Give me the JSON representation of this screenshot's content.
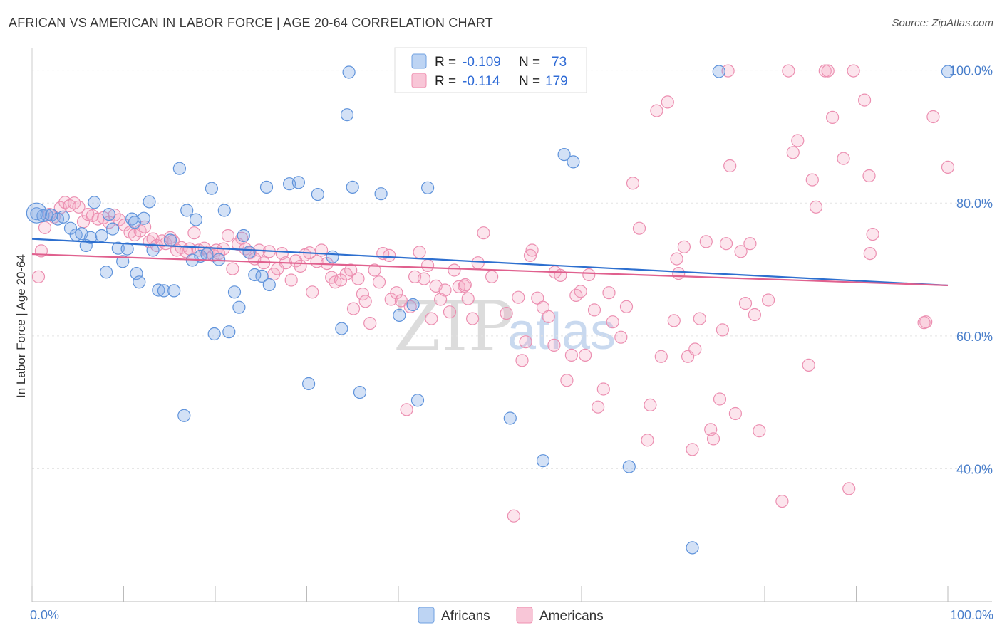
{
  "header": {
    "title": "AFRICAN VS AMERICAN IN LABOR FORCE | AGE 20-64 CORRELATION CHART",
    "source": "Source: ZipAtlas.com"
  },
  "watermark": {
    "zip": "ZIP",
    "atlas": "atlas"
  },
  "colors": {
    "africans": "#6fa0e0",
    "americans": "#ef90b0",
    "africans_line": "#2d6fcf",
    "americans_line": "#e0608e",
    "tick": "#4a7fcb"
  },
  "legend": {
    "r_label": "R =",
    "n_label": "N =",
    "africans": {
      "r": "-0.109",
      "n": "73"
    },
    "americans": {
      "r": "-0.114",
      "n": "179"
    }
  },
  "bottom_legend": {
    "africans": "Africans",
    "americans": "Americans"
  },
  "chart_data": {
    "type": "scatter",
    "title": "AFRICAN VS AMERICAN IN LABOR FORCE | AGE 20-64 CORRELATION CHART",
    "xlabel": "",
    "ylabel": "In Labor Force | Age 20-64",
    "x_tick_labels": {
      "min": "0.0%",
      "max": "100.0%"
    },
    "y_tick_labels": [
      "100.0%",
      "80.0%",
      "60.0%",
      "40.0%"
    ],
    "xlim": [
      0,
      100
    ],
    "ylim": [
      20,
      102
    ],
    "grid": true,
    "legend_position": "top-center",
    "series": [
      {
        "name": "Africans",
        "r": -0.109,
        "n": 73,
        "trend": [
          [
            0,
            74.6
          ],
          [
            100,
            67.6
          ]
        ],
        "points": [
          [
            0.5,
            78.4
          ],
          [
            1.2,
            78.1
          ],
          [
            1.6,
            78.2
          ],
          [
            2.1,
            78.2
          ],
          [
            2.8,
            77.6
          ],
          [
            3.4,
            77.9
          ],
          [
            4.2,
            76.2
          ],
          [
            4.8,
            75.2
          ],
          [
            5.4,
            75.4
          ],
          [
            5.9,
            73.6
          ],
          [
            6.4,
            74.8
          ],
          [
            6.8,
            80.1
          ],
          [
            7.6,
            75.1
          ],
          [
            8.1,
            69.6
          ],
          [
            8.4,
            78.3
          ],
          [
            8.8,
            76.1
          ],
          [
            9.4,
            73.2
          ],
          [
            9.9,
            71.2
          ],
          [
            10.4,
            73.1
          ],
          [
            10.9,
            77.6
          ],
          [
            11.4,
            69.4
          ],
          [
            11.7,
            68.1
          ],
          [
            12.2,
            77.7
          ],
          [
            12.8,
            80.2
          ],
          [
            13.2,
            72.9
          ],
          [
            13.8,
            66.9
          ],
          [
            14.4,
            66.8
          ],
          [
            15.1,
            74.4
          ],
          [
            15.5,
            66.8
          ],
          [
            16.1,
            85.2
          ],
          [
            16.6,
            48.0
          ],
          [
            16.9,
            78.9
          ],
          [
            17.5,
            71.4
          ],
          [
            17.9,
            77.5
          ],
          [
            18.4,
            72.0
          ],
          [
            19.1,
            72.3
          ],
          [
            19.6,
            82.2
          ],
          [
            19.9,
            60.3
          ],
          [
            20.4,
            71.5
          ],
          [
            21.0,
            78.9
          ],
          [
            21.5,
            60.6
          ],
          [
            22.1,
            66.6
          ],
          [
            22.6,
            64.3
          ],
          [
            23.1,
            75.1
          ],
          [
            23.7,
            72.6
          ],
          [
            24.3,
            69.2
          ],
          [
            25.1,
            69.0
          ],
          [
            25.6,
            82.4
          ],
          [
            25.9,
            67.7
          ],
          [
            28.1,
            82.9
          ],
          [
            29.1,
            83.1
          ],
          [
            30.2,
            52.8
          ],
          [
            31.2,
            81.3
          ],
          [
            32.8,
            71.9
          ],
          [
            33.8,
            61.1
          ],
          [
            34.6,
            99.7
          ],
          [
            34.4,
            93.3
          ],
          [
            35.0,
            82.4
          ],
          [
            35.8,
            51.5
          ],
          [
            38.1,
            81.4
          ],
          [
            40.1,
            63.1
          ],
          [
            41.6,
            64.7
          ],
          [
            42.1,
            50.3
          ],
          [
            43.2,
            82.3
          ],
          [
            52.2,
            47.6
          ],
          [
            55.8,
            41.2
          ],
          [
            58.1,
            87.3
          ],
          [
            59.1,
            86.2
          ],
          [
            65.2,
            40.3
          ],
          [
            72.1,
            28.1
          ],
          [
            75.0,
            99.8
          ],
          [
            100.0,
            99.8
          ],
          [
            11.2,
            77.1
          ]
        ]
      },
      {
        "name": "Americans",
        "r": -0.114,
        "n": 179,
        "trend": [
          [
            0,
            72.3
          ],
          [
            100,
            67.6
          ]
        ],
        "points": [
          [
            0.7,
            68.9
          ],
          [
            1.0,
            72.8
          ],
          [
            1.4,
            76.3
          ],
          [
            1.9,
            78.3
          ],
          [
            2.4,
            77.9
          ],
          [
            3.1,
            79.3
          ],
          [
            3.6,
            80.1
          ],
          [
            4.1,
            79.6
          ],
          [
            4.6,
            80.0
          ],
          [
            5.1,
            79.4
          ],
          [
            5.6,
            77.2
          ],
          [
            6.1,
            78.3
          ],
          [
            6.6,
            78.1
          ],
          [
            7.2,
            77.6
          ],
          [
            7.8,
            77.8
          ],
          [
            8.4,
            77.1
          ],
          [
            9.0,
            78.2
          ],
          [
            9.5,
            77.5
          ],
          [
            10.1,
            76.7
          ],
          [
            10.7,
            75.6
          ],
          [
            11.2,
            75.2
          ],
          [
            11.8,
            75.8
          ],
          [
            12.3,
            76.4
          ],
          [
            12.8,
            74.2
          ],
          [
            13.2,
            74.6
          ],
          [
            13.6,
            73.6
          ],
          [
            14.2,
            74.3
          ],
          [
            14.6,
            73.9
          ],
          [
            15.1,
            74.8
          ],
          [
            15.4,
            74.3
          ],
          [
            15.8,
            72.9
          ],
          [
            16.3,
            73.3
          ],
          [
            16.8,
            72.7
          ],
          [
            17.2,
            73.1
          ],
          [
            17.7,
            75.5
          ],
          [
            18.2,
            72.9
          ],
          [
            18.8,
            73.2
          ],
          [
            19.3,
            72.6
          ],
          [
            19.8,
            72.1
          ],
          [
            20.4,
            72.4
          ],
          [
            20.9,
            73.1
          ],
          [
            21.4,
            75.1
          ],
          [
            21.9,
            70.1
          ],
          [
            22.5,
            73.8
          ],
          [
            22.9,
            74.7
          ],
          [
            23.3,
            73.1
          ],
          [
            23.8,
            72.5
          ],
          [
            24.3,
            71.6
          ],
          [
            24.8,
            72.9
          ],
          [
            25.3,
            71.0
          ],
          [
            25.9,
            72.7
          ],
          [
            26.4,
            69.3
          ],
          [
            26.8,
            70.1
          ],
          [
            27.3,
            72.4
          ],
          [
            27.7,
            71.0
          ],
          [
            28.3,
            68.4
          ],
          [
            28.8,
            71.3
          ],
          [
            29.3,
            70.5
          ],
          [
            29.8,
            72.2
          ],
          [
            30.3,
            72.5
          ],
          [
            30.6,
            66.6
          ],
          [
            31.1,
            71.2
          ],
          [
            31.6,
            72.9
          ],
          [
            32.2,
            70.9
          ],
          [
            32.7,
            68.8
          ],
          [
            33.1,
            68.1
          ],
          [
            33.7,
            68.4
          ],
          [
            34.3,
            69.3
          ],
          [
            34.8,
            69.9
          ],
          [
            35.1,
            64.1
          ],
          [
            35.6,
            68.6
          ],
          [
            36.1,
            66.3
          ],
          [
            36.4,
            65.2
          ],
          [
            36.9,
            61.9
          ],
          [
            37.4,
            69.9
          ],
          [
            37.9,
            68.1
          ],
          [
            38.3,
            72.4
          ],
          [
            39.2,
            65.5
          ],
          [
            39.8,
            66.5
          ],
          [
            40.3,
            65.3
          ],
          [
            40.9,
            48.9
          ],
          [
            41.3,
            64.4
          ],
          [
            41.8,
            68.9
          ],
          [
            42.3,
            72.6
          ],
          [
            42.8,
            68.6
          ],
          [
            43.2,
            70.6
          ],
          [
            43.6,
            62.6
          ],
          [
            44.1,
            67.5
          ],
          [
            44.6,
            65.5
          ],
          [
            45.1,
            66.9
          ],
          [
            45.6,
            63.6
          ],
          [
            46.1,
            69.9
          ],
          [
            46.6,
            67.4
          ],
          [
            47.2,
            67.5
          ],
          [
            47.6,
            65.6
          ],
          [
            48.1,
            62.6
          ],
          [
            48.7,
            71.0
          ],
          [
            49.3,
            75.5
          ],
          [
            50.2,
            68.9
          ],
          [
            51.8,
            63.4
          ],
          [
            52.6,
            32.9
          ],
          [
            53.1,
            65.8
          ],
          [
            53.5,
            56.3
          ],
          [
            53.9,
            59.1
          ],
          [
            54.4,
            72.1
          ],
          [
            54.6,
            72.9
          ],
          [
            55.2,
            65.7
          ],
          [
            55.8,
            64.3
          ],
          [
            56.4,
            62.9
          ],
          [
            57.1,
            69.6
          ],
          [
            57.7,
            69.1
          ],
          [
            58.4,
            53.3
          ],
          [
            58.9,
            57.1
          ],
          [
            59.4,
            66.1
          ],
          [
            59.9,
            66.7
          ],
          [
            60.4,
            57.1
          ],
          [
            60.8,
            69.2
          ],
          [
            61.4,
            63.9
          ],
          [
            61.8,
            49.3
          ],
          [
            62.4,
            52.0
          ],
          [
            63.0,
            66.5
          ],
          [
            63.4,
            62.1
          ],
          [
            64.3,
            59.8
          ],
          [
            64.9,
            64.4
          ],
          [
            65.6,
            83.0
          ],
          [
            66.3,
            76.2
          ],
          [
            67.2,
            44.3
          ],
          [
            67.5,
            49.6
          ],
          [
            68.2,
            93.9
          ],
          [
            68.7,
            56.9
          ],
          [
            69.4,
            95.2
          ],
          [
            70.1,
            62.3
          ],
          [
            70.4,
            71.6
          ],
          [
            70.6,
            69.4
          ],
          [
            71.2,
            73.4
          ],
          [
            71.6,
            56.9
          ],
          [
            72.1,
            42.9
          ],
          [
            72.4,
            58.0
          ],
          [
            72.9,
            62.6
          ],
          [
            73.6,
            74.2
          ],
          [
            74.1,
            45.9
          ],
          [
            74.4,
            44.5
          ],
          [
            75.1,
            50.5
          ],
          [
            75.4,
            60.9
          ],
          [
            75.8,
            73.9
          ],
          [
            76.2,
            85.6
          ],
          [
            76.8,
            48.3
          ],
          [
            77.4,
            72.7
          ],
          [
            77.9,
            64.9
          ],
          [
            78.4,
            73.9
          ],
          [
            78.9,
            63.2
          ],
          [
            79.4,
            45.7
          ],
          [
            80.4,
            65.4
          ],
          [
            81.9,
            35.1
          ],
          [
            82.6,
            99.9
          ],
          [
            83.1,
            87.6
          ],
          [
            83.6,
            89.4
          ],
          [
            84.8,
            55.6
          ],
          [
            85.2,
            83.5
          ],
          [
            85.6,
            79.4
          ],
          [
            86.6,
            99.9
          ],
          [
            86.9,
            99.9
          ],
          [
            87.4,
            92.9
          ],
          [
            88.6,
            86.7
          ],
          [
            89.2,
            37.0
          ],
          [
            89.7,
            99.9
          ],
          [
            90.9,
            95.5
          ],
          [
            91.4,
            84.1
          ],
          [
            91.8,
            75.3
          ],
          [
            91.5,
            72.4
          ],
          [
            97.6,
            62.1
          ],
          [
            98.4,
            93.0
          ],
          [
            100.0,
            85.4
          ],
          [
            76.0,
            99.9
          ],
          [
            97.4,
            62.0
          ],
          [
            47.3,
            67.7
          ],
          [
            20.1,
            72.9
          ],
          [
            39.0,
            72.1
          ],
          [
            57.0,
            58.6
          ]
        ]
      }
    ]
  }
}
